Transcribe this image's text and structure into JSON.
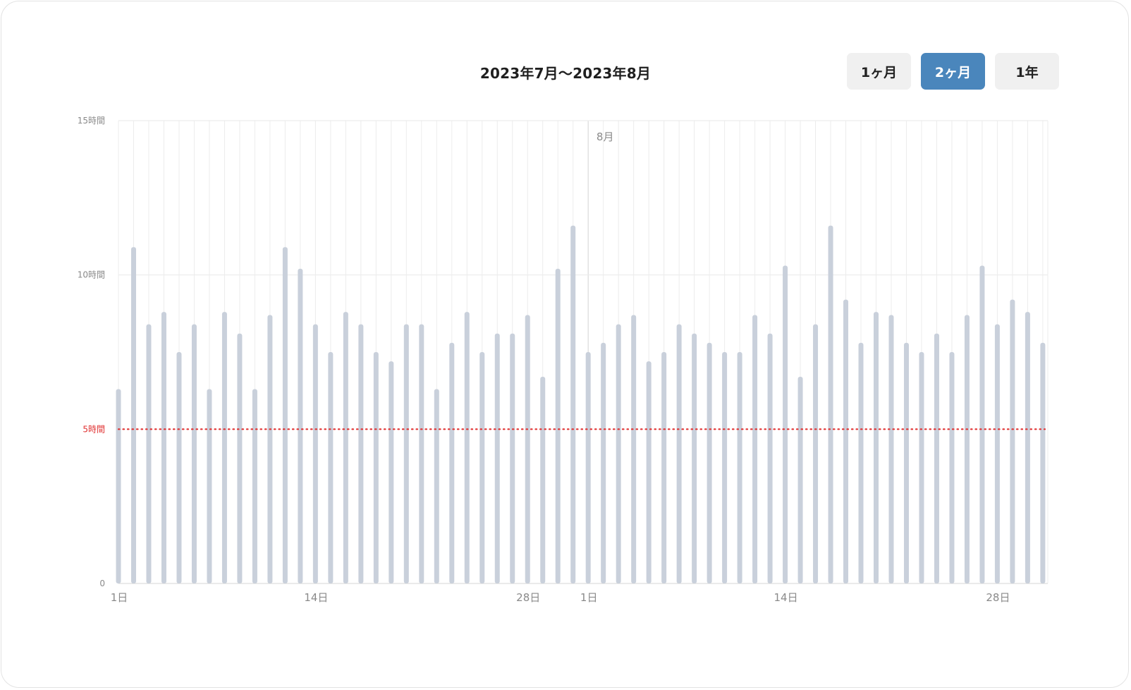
{
  "header": {
    "title": "2023年7月〜2023年8月",
    "range_buttons": [
      {
        "label": "1ヶ月",
        "active": false
      },
      {
        "label": "2ヶ月",
        "active": true
      },
      {
        "label": "1年",
        "active": false
      }
    ]
  },
  "colors": {
    "bar": "#c9d0db",
    "grid": "#ececec",
    "reference_line": "#e03131",
    "active_button": "#4a86bc"
  },
  "chart_data": {
    "type": "bar",
    "ylim": [
      0,
      15
    ],
    "y_ticks": [
      {
        "value": 0,
        "label": "0"
      },
      {
        "value": 10,
        "label": "10時間"
      },
      {
        "value": 15,
        "label": "15時間"
      }
    ],
    "reference_line": {
      "value": 5,
      "label": "5時間",
      "style": "dotted",
      "color": "#e03131"
    },
    "months": [
      {
        "label": "7月",
        "days": 31,
        "values": [
          6.3,
          10.9,
          8.4,
          8.8,
          7.5,
          8.4,
          6.3,
          8.8,
          8.1,
          6.3,
          8.7,
          10.9,
          10.2,
          8.4,
          7.5,
          8.8,
          8.4,
          7.5,
          7.2,
          8.4,
          8.4,
          6.3,
          7.8,
          8.8,
          7.5,
          8.1,
          8.1,
          8.7,
          6.7,
          10.2,
          11.6
        ]
      },
      {
        "label": "8月",
        "days": 31,
        "values": [
          7.5,
          7.8,
          8.4,
          8.7,
          7.2,
          7.5,
          8.4,
          8.1,
          7.8,
          7.5,
          7.5,
          8.7,
          8.1,
          10.3,
          6.7,
          8.4,
          11.6,
          9.2,
          7.8,
          8.8,
          8.7,
          7.8,
          7.5,
          8.1,
          7.5,
          8.7,
          10.3,
          8.4,
          9.2,
          8.8,
          7.8
        ]
      }
    ],
    "x_tick_labels": [
      {
        "month_index": 0,
        "day": 1,
        "label": "1日"
      },
      {
        "month_index": 0,
        "day": 14,
        "label": "14日"
      },
      {
        "month_index": 0,
        "day": 28,
        "label": "28日"
      },
      {
        "month_index": 1,
        "day": 1,
        "label": "1日"
      },
      {
        "month_index": 1,
        "day": 14,
        "label": "14日"
      },
      {
        "month_index": 1,
        "day": 28,
        "label": "28日"
      }
    ],
    "month_marker": {
      "month_index": 1,
      "label": "8月"
    },
    "grid": true
  }
}
